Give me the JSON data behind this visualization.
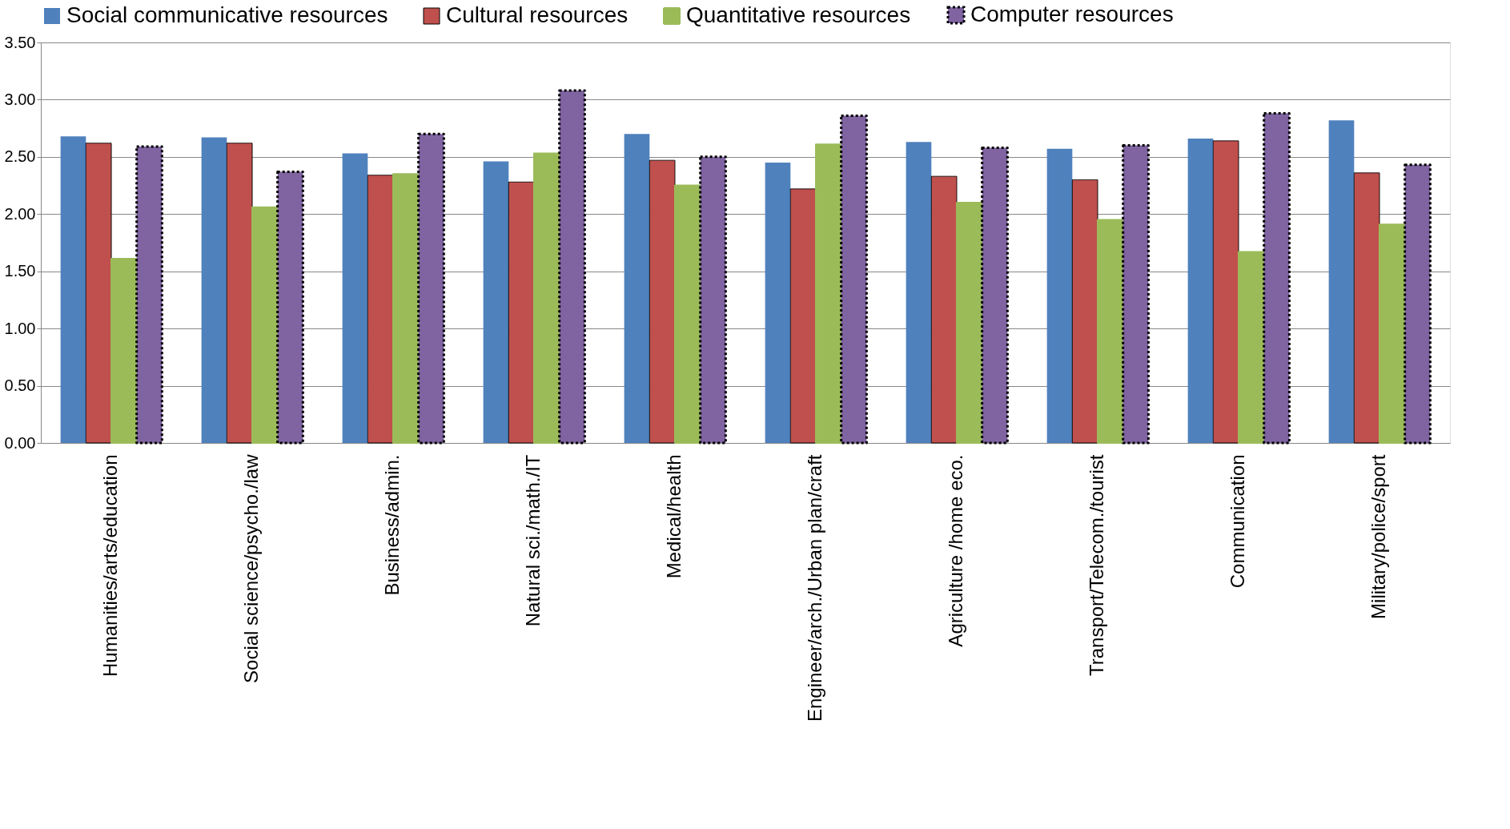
{
  "chart_data": {
    "type": "bar",
    "categories": [
      "Humanities/arts/education",
      "Social science/psycho./law",
      "Business/admin.",
      "Natural sci./math./IT",
      "Medical/health",
      "Engineer/arch./Urban plan/craft",
      "Agriculture /home eco.",
      "Transport/Telecom./tourist",
      "Communication",
      "Military/police/sport"
    ],
    "series": [
      {
        "name": "Social communicative resources",
        "color": "#4f81bd",
        "values": [
          2.68,
          2.67,
          2.53,
          2.46,
          2.7,
          2.45,
          2.63,
          2.57,
          2.66,
          2.82
        ]
      },
      {
        "name": "Cultural resources",
        "color": "#c0504d",
        "line_style": "solid",
        "values": [
          2.62,
          2.62,
          2.34,
          2.28,
          2.47,
          2.22,
          2.33,
          2.3,
          2.64,
          2.36
        ]
      },
      {
        "name": "Quantitative resources",
        "color": "#9bbb59",
        "values": [
          1.61,
          2.06,
          2.35,
          2.53,
          2.25,
          2.61,
          2.1,
          1.95,
          1.67,
          1.91
        ]
      },
      {
        "name": "Computer resources",
        "color": "#8064a2",
        "line_style": "dotted",
        "values": [
          2.59,
          2.37,
          2.7,
          3.08,
          2.5,
          2.86,
          2.58,
          2.6,
          2.88,
          2.43
        ]
      }
    ],
    "ylim": [
      0,
      3.5
    ],
    "yticks": [
      {
        "value": 0,
        "label": "0.00"
      },
      {
        "value": 0.5,
        "label": "0.50"
      },
      {
        "value": 1,
        "label": "1.00"
      },
      {
        "value": 1.5,
        "label": "1.50"
      },
      {
        "value": 2,
        "label": "2.00"
      },
      {
        "value": 2.5,
        "label": "2.50"
      },
      {
        "value": 3,
        "label": "3.00"
      },
      {
        "value": 3.5,
        "label": "3.50"
      }
    ],
    "grid": "y",
    "legend": "top"
  }
}
